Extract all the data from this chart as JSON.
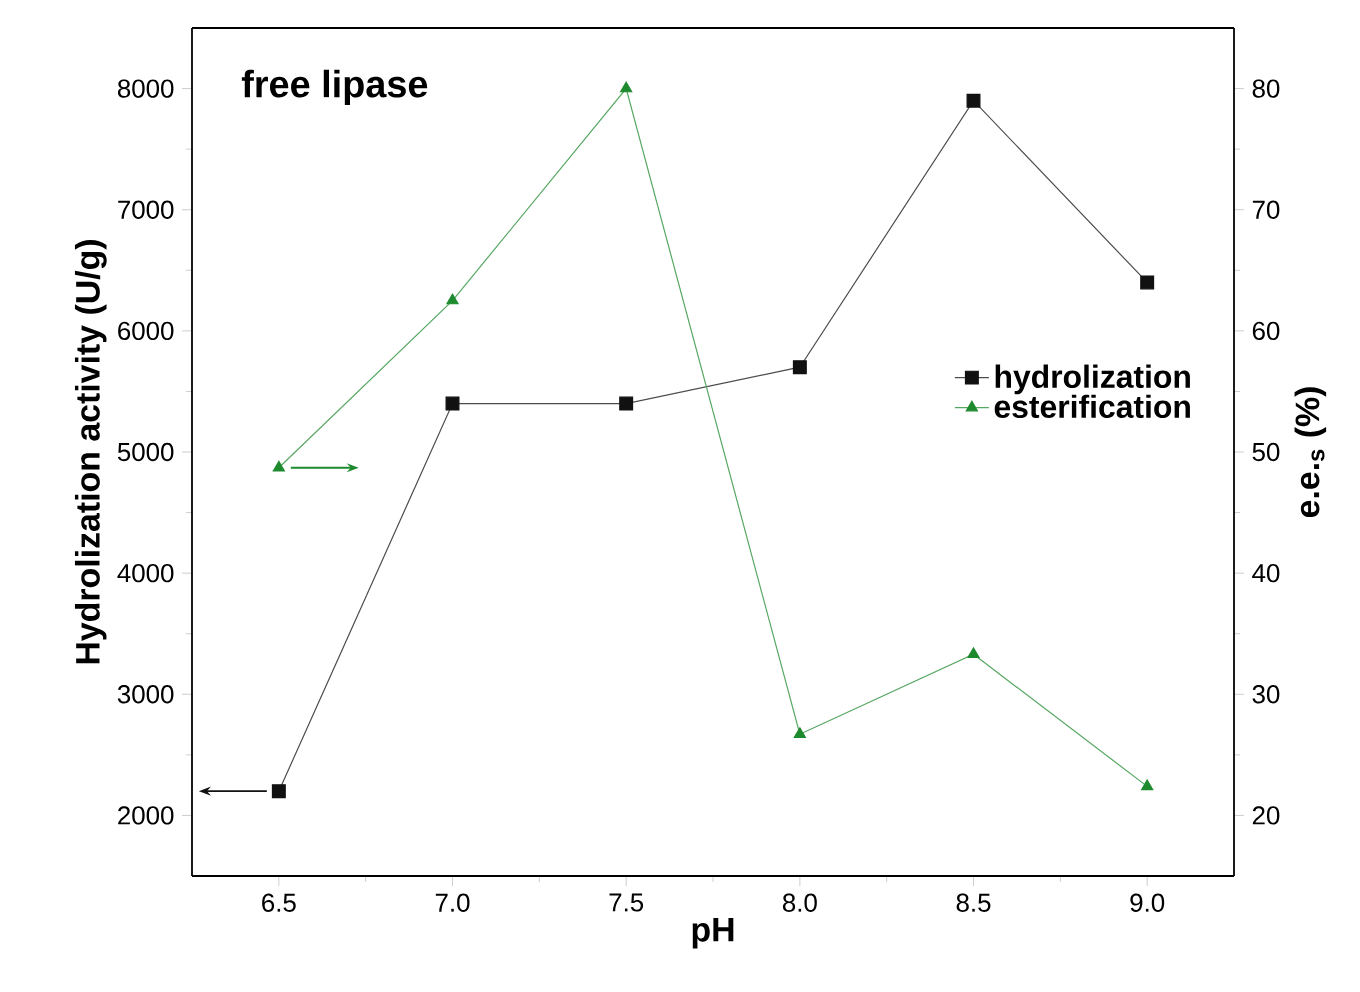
{
  "chart_data": {
    "type": "line",
    "title": "free lipase",
    "xlabel": "pH",
    "ylabel": "Hydrolization activity (U/g)",
    "y2label": "e.e.$_{s}$ (%)",
    "x": [
      6.5,
      7.0,
      7.5,
      8.0,
      8.5,
      9.0
    ],
    "series": [
      {
        "name": "hydrolization",
        "color": "#111111",
        "marker": "square",
        "values": [
          2200,
          5400,
          5400,
          5700,
          7900,
          6400
        ]
      },
      {
        "name": "esterification",
        "color": "#1e8a2e",
        "marker": "triangle",
        "axis": "y2",
        "values": [
          48.7,
          62.5,
          80,
          26.7,
          33.3,
          22.4
        ]
      }
    ],
    "xlim": [
      6.25,
      9.25
    ],
    "xticks": [
      {
        "value": 6.5,
        "label": "6.5"
      },
      {
        "value": 6.75,
        "label": null
      },
      {
        "value": 7.0,
        "label": "7.0"
      },
      {
        "value": 7.25,
        "label": null
      },
      {
        "value": 7.5,
        "label": "7.5"
      },
      {
        "value": 7.75,
        "label": null
      },
      {
        "value": 8.0,
        "label": "8.0"
      },
      {
        "value": 8.25,
        "label": null
      },
      {
        "value": 8.5,
        "label": "8.5"
      },
      {
        "value": 8.75,
        "label": null
      },
      {
        "value": 9.0,
        "label": "9.0"
      }
    ],
    "ylim": [
      1500,
      8500
    ],
    "yticks": [
      2000,
      {
        "value": 2500,
        "label": null
      },
      3000,
      {
        "value": 3500,
        "label": null
      },
      4000,
      {
        "value": 4500,
        "label": null
      },
      5000,
      {
        "value": 5500,
        "label": null
      },
      6000,
      {
        "value": 6500,
        "label": null
      },
      7000,
      {
        "value": 7500,
        "label": null
      },
      8000
    ],
    "y2lim": [
      15,
      85
    ],
    "y2ticks": [
      20,
      {
        "value": 25,
        "label": null
      },
      30,
      {
        "value": 35,
        "label": null
      },
      40,
      {
        "value": 45,
        "label": null
      },
      50,
      {
        "value": 55,
        "label": null
      },
      60,
      {
        "value": 65,
        "label": null
      },
      70,
      {
        "value": 75,
        "label": null
      },
      80
    ],
    "legend": "right",
    "grid": false,
    "line_style": "solid"
  }
}
